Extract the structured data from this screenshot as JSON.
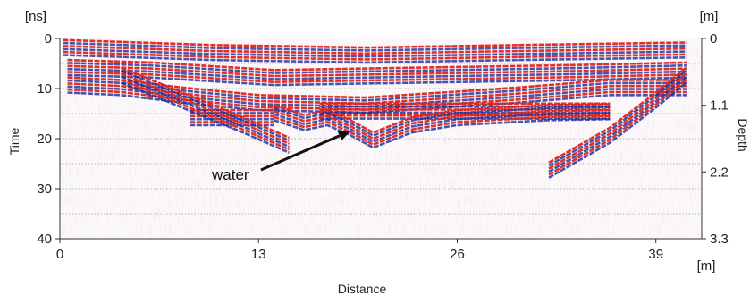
{
  "chart_data": {
    "type": "heatmap",
    "subtype": "ground-penetrating-radar radargram",
    "xlabel": "Distance",
    "x_unit": "[m]",
    "ylabel_left": "Time",
    "y_unit_left": "[ns]",
    "ylabel_right": "Depth",
    "y_unit_right": "[m]",
    "xlim": [
      0,
      42
    ],
    "ylim_time": [
      0,
      40
    ],
    "ylim_depth": [
      0,
      3.3
    ],
    "x_ticks": [
      "0",
      "13",
      "26",
      "39"
    ],
    "x_tick_values": [
      0,
      13,
      26,
      39
    ],
    "y_ticks_left": [
      "0",
      "10",
      "20",
      "30",
      "40"
    ],
    "y_tick_values_left": [
      0,
      10,
      20,
      30,
      40
    ],
    "y_ticks_right": [
      "0",
      "1.1",
      "2.2",
      "3.3"
    ],
    "y_tick_values_right": [
      0,
      1.1,
      2.2,
      3.3
    ],
    "horizontal_gridlines_time": [
      5,
      10,
      15,
      20,
      25,
      30,
      35
    ],
    "grid": "horizontal dotted",
    "colormap": [
      "#1a2a9a",
      "#ffffff",
      "#e0241a"
    ],
    "reflectors": [
      {
        "name": "surface",
        "points": [
          [
            0.2,
            1.5
          ],
          [
            10,
            2.5
          ],
          [
            20,
            3
          ],
          [
            30,
            2.5
          ],
          [
            41,
            2
          ]
        ]
      },
      {
        "name": "reflector-1",
        "points": [
          [
            0.5,
            5.5
          ],
          [
            6,
            6
          ],
          [
            14,
            7.5
          ],
          [
            24,
            7
          ],
          [
            34,
            6.5
          ],
          [
            41,
            6
          ]
        ]
      },
      {
        "name": "reflector-2",
        "points": [
          [
            0.5,
            9
          ],
          [
            4,
            9.5
          ],
          [
            8,
            11
          ],
          [
            13,
            12.5
          ],
          [
            20,
            13
          ],
          [
            30,
            11
          ],
          [
            36,
            9.5
          ],
          [
            41,
            9.5
          ]
        ]
      },
      {
        "name": "water-flat-1",
        "points": [
          [
            8.5,
            15.5
          ],
          [
            14,
            15.5
          ]
        ]
      },
      {
        "name": "water-flat-2",
        "points": [
          [
            17,
            14.2
          ],
          [
            36,
            14.2
          ]
        ]
      },
      {
        "name": "water-bowl",
        "points": [
          [
            14,
            14.5
          ],
          [
            16,
            16.5
          ],
          [
            17.5,
            15.5
          ],
          [
            19,
            17.5
          ],
          [
            20.5,
            20
          ],
          [
            23,
            17
          ],
          [
            26,
            15.5
          ],
          [
            29,
            15
          ],
          [
            32,
            14.5
          ],
          [
            36,
            14.3
          ]
        ]
      },
      {
        "name": "diffraction-left",
        "points": [
          [
            4,
            7
          ],
          [
            8,
            12
          ],
          [
            12,
            17
          ],
          [
            15,
            21
          ]
        ]
      },
      {
        "name": "diffraction-right",
        "points": [
          [
            32,
            26
          ],
          [
            36,
            19
          ],
          [
            39,
            12
          ],
          [
            41,
            7
          ]
        ]
      }
    ],
    "annotation": {
      "text": "water",
      "arrow_to": [
        19,
        18.5
      ]
    }
  }
}
